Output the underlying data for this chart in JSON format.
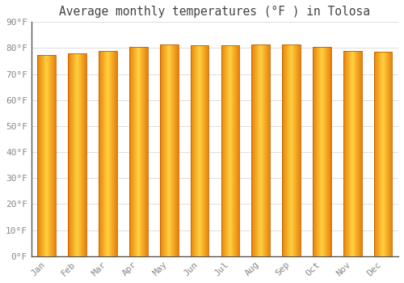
{
  "title": "Average monthly temperatures (°F ) in Tolosa",
  "months": [
    "Jan",
    "Feb",
    "Mar",
    "Apr",
    "May",
    "Jun",
    "Jul",
    "Aug",
    "Sep",
    "Oct",
    "Nov",
    "Dec"
  ],
  "values": [
    77.5,
    78.0,
    79.0,
    80.5,
    81.5,
    81.0,
    81.0,
    81.5,
    81.5,
    80.5,
    79.0,
    78.5
  ],
  "ylim": [
    0,
    90
  ],
  "yticks": [
    0,
    10,
    20,
    30,
    40,
    50,
    60,
    70,
    80,
    90
  ],
  "ytick_labels": [
    "0°F",
    "10°F",
    "20°F",
    "30°F",
    "40°F",
    "50°F",
    "60°F",
    "70°F",
    "80°F",
    "90°F"
  ],
  "bar_color_left": "#E8820A",
  "bar_color_center": "#FFD040",
  "bar_color_right": "#E8820A",
  "bar_edge_color": "#C06000",
  "background_color": "#FFFFFF",
  "plot_bg_color": "#FFFFFF",
  "grid_color": "#DDDDDD",
  "title_fontsize": 10.5,
  "tick_fontsize": 8,
  "font_family": "monospace",
  "bar_width": 0.6,
  "gradient_steps": 50
}
